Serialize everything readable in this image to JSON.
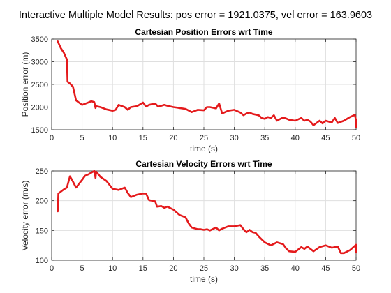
{
  "figure": {
    "suptitle": "Interactive Multiple Model Results: pos error = 1921.0375, vel error = 163.9603"
  },
  "chart_data": [
    {
      "type": "line",
      "title": "Cartesian Position Errors wrt Time",
      "xlabel": "time (s)",
      "ylabel": "Position error (m)",
      "xlim": [
        0,
        50
      ],
      "ylim": [
        1500,
        3500
      ],
      "xticks": [
        0,
        5,
        10,
        15,
        20,
        25,
        30,
        35,
        40,
        45,
        50
      ],
      "yticks": [
        1500,
        2000,
        2500,
        3000,
        3500
      ],
      "grid": true,
      "series": [
        {
          "color": "#e41a1c",
          "x": [
            1.0,
            1.5,
            2.0,
            2.5,
            2.6,
            3.0,
            3.5,
            4.0,
            5.0,
            6.0,
            6.5,
            7.0,
            7.2,
            7.3,
            8.0,
            9.0,
            10.0,
            10.5,
            11.0,
            12.0,
            12.5,
            13.0,
            14.0,
            15.0,
            15.5,
            16.0,
            17.0,
            17.5,
            18.0,
            18.5,
            19.0,
            20.0,
            21.0,
            22.0,
            23.0,
            24.0,
            25.0,
            25.5,
            26.0,
            27.0,
            27.5,
            28.0,
            29.0,
            30.0,
            31.0,
            31.5,
            32.0,
            32.5,
            33.0,
            34.0,
            34.5,
            35.0,
            35.5,
            36.0,
            36.5,
            37.0,
            38.0,
            38.5,
            39.0,
            40.0,
            41.0,
            41.5,
            42.0,
            42.5,
            43.0,
            44.0,
            44.5,
            45.0,
            46.0,
            46.5,
            47.0,
            48.0,
            49.0,
            49.8,
            50.0,
            50.0
          ],
          "y": [
            3450,
            3300,
            3200,
            3050,
            2560,
            2520,
            2450,
            2150,
            2050,
            2100,
            2130,
            2110,
            1980,
            2020,
            2000,
            1950,
            1920,
            1940,
            2050,
            2000,
            1940,
            2000,
            2020,
            2100,
            2010,
            2050,
            2080,
            2010,
            2030,
            2050,
            2030,
            2000,
            1980,
            1960,
            1890,
            1940,
            1930,
            2000,
            2000,
            1970,
            2080,
            1860,
            1920,
            1940,
            1880,
            1820,
            1860,
            1880,
            1850,
            1820,
            1760,
            1740,
            1780,
            1760,
            1820,
            1700,
            1770,
            1750,
            1720,
            1700,
            1760,
            1700,
            1720,
            1680,
            1600,
            1700,
            1640,
            1700,
            1660,
            1760,
            1650,
            1700,
            1780,
            1830,
            1700,
            1560
          ]
        }
      ]
    },
    {
      "type": "line",
      "title": "Cartesian Velocity Errors wrt Time",
      "xlabel": "time (s)",
      "ylabel": "Velocity error (m/s)",
      "xlim": [
        0,
        50
      ],
      "ylim": [
        100,
        250
      ],
      "xticks": [
        0,
        5,
        10,
        15,
        20,
        25,
        30,
        35,
        40,
        45,
        50
      ],
      "yticks": [
        100,
        150,
        200,
        250
      ],
      "grid": true,
      "series": [
        {
          "color": "#e41a1c",
          "x": [
            1.0,
            1.1,
            2.0,
            2.5,
            3.0,
            3.5,
            4.0,
            5.0,
            5.5,
            6.0,
            7.0,
            7.2,
            7.3,
            8.0,
            9.0,
            10.0,
            11.0,
            12.0,
            12.5,
            13.0,
            14.0,
            15.0,
            15.5,
            16.0,
            17.0,
            17.3,
            18.0,
            18.5,
            19.0,
            20.0,
            21.0,
            22.0,
            22.5,
            23.0,
            24.0,
            24.5,
            25.0,
            25.5,
            26.0,
            27.0,
            27.5,
            28.0,
            29.0,
            30.0,
            31.0,
            31.5,
            32.0,
            32.5,
            33.0,
            33.5,
            34.0,
            35.0,
            36.0,
            37.0,
            38.0,
            38.5,
            39.0,
            40.0,
            41.0,
            41.5,
            42.0,
            43.0,
            44.0,
            45.0,
            46.0,
            47.0,
            47.5,
            48.0,
            49.0,
            50.0,
            50.0
          ],
          "y": [
            182,
            212,
            219,
            222,
            241,
            232,
            222,
            235,
            242,
            244,
            250,
            238,
            249,
            240,
            233,
            220,
            218,
            222,
            213,
            206,
            210,
            212,
            212,
            201,
            199,
            190,
            191,
            188,
            190,
            185,
            176,
            172,
            162,
            155,
            152,
            152,
            151,
            152,
            150,
            155,
            150,
            153,
            157,
            157,
            159,
            152,
            147,
            151,
            147,
            146,
            140,
            130,
            125,
            130,
            127,
            120,
            115,
            114,
            122,
            119,
            123,
            115,
            122,
            125,
            121,
            123,
            112,
            112,
            117,
            126,
            113
          ]
        }
      ]
    }
  ]
}
